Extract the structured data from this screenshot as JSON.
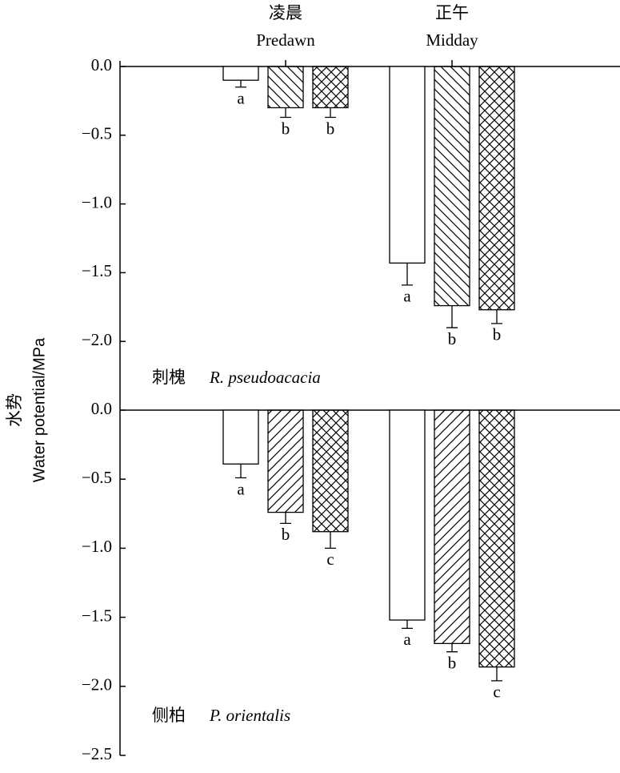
{
  "chart_data": [
    {
      "type": "bar",
      "categories_zh": [
        "凌晨",
        "正午"
      ],
      "categories": [
        "Predawn",
        "Midday"
      ],
      "ylabel_zh": "水势",
      "ylabel": "Water potential/MPa",
      "panel_label_zh": "刺槐",
      "panel_label": "R. pseudoacacia",
      "ylim": [
        -2.5,
        0
      ],
      "yticks": [
        {
          "value": 0,
          "label": "0.0"
        },
        {
          "value": -0.5,
          "label": "−0.5"
        },
        {
          "value": -1,
          "label": "−1.0"
        },
        {
          "value": -1.5,
          "label": "−1.5"
        },
        {
          "value": -2,
          "label": "−2.0"
        }
      ],
      "series": [
        {
          "pattern": "none",
          "values": [
            -0.1,
            -1.43
          ],
          "errors": [
            0.05,
            0.16
          ],
          "letters": [
            "a",
            "a"
          ]
        },
        {
          "pattern": "backslash",
          "values": [
            -0.3,
            -1.74
          ],
          "errors": [
            0.07,
            0.16
          ],
          "letters": [
            "b",
            "b"
          ]
        },
        {
          "pattern": "crosshatch",
          "values": [
            -0.3,
            -1.77
          ],
          "errors": [
            0.07,
            0.1
          ],
          "letters": [
            "b",
            "b"
          ]
        }
      ]
    },
    {
      "type": "bar",
      "panel_label_zh": "侧柏",
      "panel_label": "P. orientalis",
      "ylim": [
        -2.5,
        0
      ],
      "yticks": [
        {
          "value": 0,
          "label": "0.0"
        },
        {
          "value": -0.5,
          "label": "−0.5"
        },
        {
          "value": -1,
          "label": "−1.0"
        },
        {
          "value": -1.5,
          "label": "−1.5"
        },
        {
          "value": -2,
          "label": "−2.0"
        },
        {
          "value": -2.5,
          "label": "−2.5"
        }
      ],
      "series": [
        {
          "pattern": "none",
          "values": [
            -0.39,
            -1.52
          ],
          "errors": [
            0.1,
            0.06
          ],
          "letters": [
            "a",
            "a"
          ]
        },
        {
          "pattern": "slash",
          "values": [
            -0.74,
            -1.69
          ],
          "errors": [
            0.08,
            0.06
          ],
          "letters": [
            "b",
            "b"
          ]
        },
        {
          "pattern": "crosshatch",
          "values": [
            -0.88,
            -1.86
          ],
          "errors": [
            0.12,
            0.1
          ],
          "letters": [
            "c",
            "c"
          ]
        }
      ]
    }
  ]
}
